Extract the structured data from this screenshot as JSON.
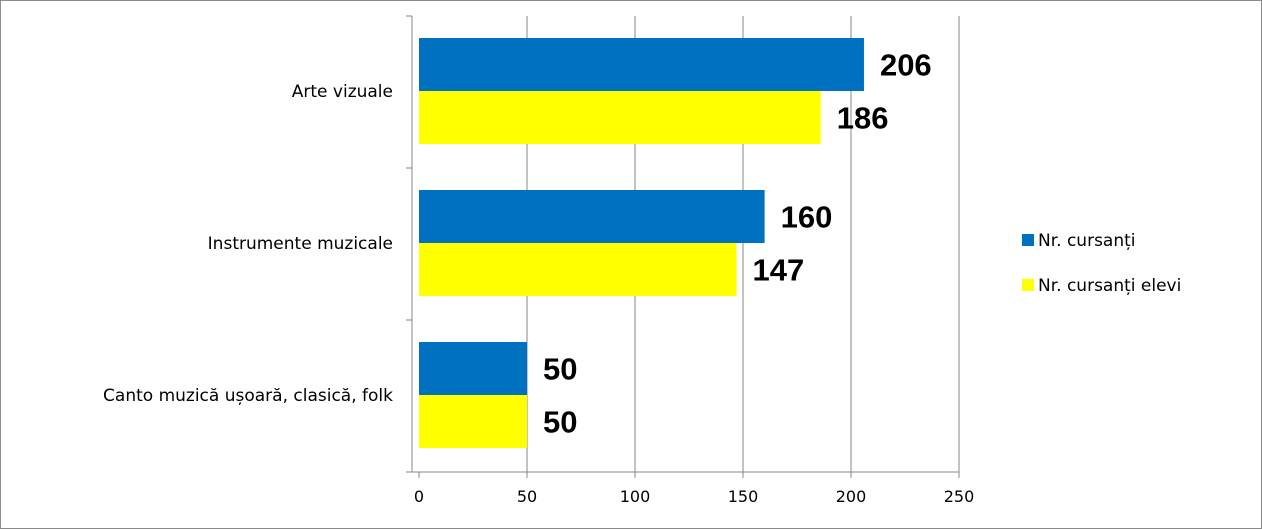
{
  "chart_data": {
    "type": "bar",
    "orientation": "horizontal",
    "categories": [
      "Arte vizuale",
      "Instrumente muzicale",
      "Canto muzică ușoară, clasică, folk"
    ],
    "series": [
      {
        "name": "Nr. cursanți",
        "values": [
          206,
          160,
          50
        ],
        "color": "#0070c0"
      },
      {
        "name": "Nr. cursanți elevi",
        "values": [
          186,
          147,
          50
        ],
        "color": "#ffff00"
      }
    ],
    "xlim": [
      0,
      250
    ],
    "xticks": [
      "0",
      "50",
      "100",
      "150",
      "200",
      "250"
    ],
    "grid": true,
    "legend": "right",
    "title": "",
    "xlabel": "",
    "ylabel": ""
  }
}
